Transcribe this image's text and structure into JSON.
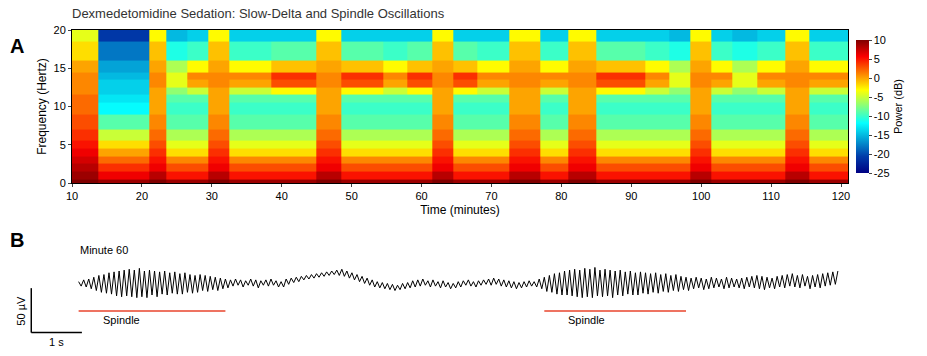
{
  "chart_data": [
    {
      "type": "heatmap",
      "panel": "A",
      "title": "Dexmedetomidine Sedation: Slow-Delta and Spindle Oscillations",
      "x_label": "Time (minutes)",
      "y_label": "Frequency (Hertz)",
      "xlim": [
        10,
        121
      ],
      "xticks": [
        10,
        20,
        30,
        40,
        50,
        60,
        70,
        80,
        90,
        100,
        110,
        120
      ],
      "ylim": [
        0,
        20
      ],
      "yticks": [
        0,
        5,
        10,
        15,
        20
      ],
      "x": [
        10,
        12.5,
        15,
        17.5,
        20,
        22,
        25,
        28,
        31,
        34,
        37,
        40,
        43,
        47,
        50,
        53,
        56,
        60,
        63,
        66,
        70,
        75,
        79,
        83,
        87,
        90,
        94,
        97,
        100,
        103,
        106,
        110,
        114,
        117,
        120
      ],
      "y": [
        0,
        1,
        2,
        3,
        4,
        5,
        6,
        8,
        10,
        11,
        12,
        13,
        14,
        15,
        17,
        20
      ],
      "z": [
        [
          10,
          10,
          9,
          9,
          9,
          10,
          9,
          9,
          10,
          9,
          9,
          9,
          9,
          10,
          9,
          9,
          9,
          9,
          10,
          9,
          9,
          10,
          9,
          10,
          9,
          9,
          9,
          9,
          10,
          9,
          9,
          9,
          10,
          9,
          9
        ],
        [
          9,
          9,
          6,
          6,
          6,
          8,
          5,
          5,
          8,
          5,
          5,
          5,
          5,
          8,
          5,
          5,
          5,
          5,
          8,
          5,
          5,
          8,
          5,
          8,
          5,
          5,
          5,
          5,
          8,
          5,
          5,
          5,
          8,
          5,
          5
        ],
        [
          8,
          8,
          4,
          4,
          4,
          6,
          3,
          3,
          6,
          3,
          3,
          3,
          3,
          6,
          3,
          3,
          3,
          3,
          6,
          3,
          3,
          6,
          3,
          6,
          3,
          3,
          3,
          3,
          6,
          3,
          3,
          3,
          6,
          3,
          3
        ],
        [
          7,
          7,
          2,
          2,
          2,
          5,
          1,
          1,
          5,
          1,
          1,
          1,
          1,
          5,
          1,
          1,
          1,
          1,
          5,
          1,
          1,
          5,
          1,
          5,
          1,
          1,
          1,
          1,
          5,
          1,
          1,
          1,
          5,
          1,
          1
        ],
        [
          6,
          6,
          0,
          0,
          0,
          4,
          -2,
          -2,
          4,
          -2,
          -2,
          -2,
          -2,
          4,
          -2,
          -2,
          -2,
          -2,
          4,
          -2,
          -2,
          4,
          -2,
          4,
          -2,
          -2,
          -2,
          -2,
          4,
          -2,
          -2,
          -2,
          4,
          -2,
          -2
        ],
        [
          5,
          5,
          -2,
          -2,
          -2,
          3,
          -4,
          -4,
          3,
          -4,
          -4,
          -4,
          -4,
          3,
          -4,
          -4,
          -4,
          -4,
          3,
          -4,
          -4,
          3,
          -4,
          3,
          -4,
          -4,
          -4,
          -4,
          3,
          -4,
          -4,
          -4,
          3,
          -4,
          -4
        ],
        [
          4,
          4,
          -5,
          -5,
          -5,
          2,
          -6,
          -6,
          2,
          -6,
          -6,
          -6,
          -6,
          2,
          -6,
          -6,
          -6,
          -6,
          2,
          -6,
          -6,
          2,
          -6,
          2,
          -6,
          -6,
          -6,
          -6,
          2,
          -6,
          -6,
          -6,
          2,
          -6,
          -6
        ],
        [
          3,
          3,
          -9,
          -9,
          -9,
          1,
          -9,
          -9,
          1,
          -9,
          -9,
          -9,
          -9,
          1,
          -9,
          -9,
          -9,
          -9,
          1,
          -9,
          -9,
          1,
          -9,
          1,
          -9,
          -9,
          -9,
          -9,
          1,
          -9,
          -9,
          -9,
          1,
          -9,
          -9
        ],
        [
          2,
          2,
          -12,
          -12,
          -12,
          0,
          -10,
          -10,
          0,
          -10,
          -10,
          -10,
          -10,
          0,
          -10,
          -10,
          -10,
          -10,
          0,
          -10,
          -10,
          0,
          -10,
          0,
          -10,
          -10,
          -10,
          -10,
          0,
          -10,
          -10,
          -10,
          0,
          -10,
          -10
        ],
        [
          2,
          2,
          -13,
          -13,
          -13,
          0,
          -9,
          -9,
          0,
          -9,
          -9,
          -9,
          -9,
          0,
          -9,
          -9,
          -9,
          -9,
          0,
          -9,
          -9,
          0,
          -9,
          0,
          -9,
          -9,
          -9,
          -9,
          0,
          -9,
          -9,
          -9,
          0,
          -9,
          -9
        ],
        [
          1,
          1,
          -14,
          -14,
          -14,
          0,
          -7,
          -5,
          0,
          -5,
          -5,
          -3,
          -3,
          0,
          -3,
          -3,
          -5,
          -3,
          0,
          -3,
          -5,
          0,
          -5,
          0,
          -3,
          -3,
          -5,
          -7,
          0,
          -5,
          -7,
          -5,
          0,
          -5,
          -5
        ],
        [
          1,
          1,
          -14,
          -14,
          -14,
          1,
          -4,
          0,
          1,
          0,
          0,
          3,
          3,
          1,
          3,
          3,
          0,
          3,
          1,
          3,
          0,
          1,
          0,
          1,
          3,
          3,
          0,
          -4,
          1,
          0,
          -4,
          0,
          1,
          0,
          0
        ],
        [
          1,
          1,
          -15,
          -15,
          -15,
          1,
          -4,
          1,
          1,
          1,
          1,
          4,
          4,
          1,
          4,
          4,
          1,
          4,
          1,
          4,
          1,
          1,
          1,
          1,
          4,
          4,
          1,
          -4,
          1,
          1,
          -4,
          1,
          1,
          1,
          1
        ],
        [
          0,
          0,
          -16,
          -16,
          -16,
          0,
          -6,
          -3,
          0,
          -3,
          -3,
          -1,
          -1,
          0,
          -1,
          -1,
          -3,
          -1,
          0,
          -1,
          -3,
          0,
          -3,
          0,
          -1,
          -1,
          -3,
          -6,
          0,
          -3,
          -6,
          -3,
          0,
          -3,
          -3
        ],
        [
          -2,
          -2,
          -18,
          -18,
          -18,
          -1,
          -11,
          -10,
          -1,
          -10,
          -10,
          -9,
          -9,
          -1,
          -9,
          -9,
          -10,
          -9,
          -1,
          -9,
          -10,
          -1,
          -10,
          -1,
          -9,
          -9,
          -10,
          -11,
          -1,
          -10,
          -11,
          -10,
          -1,
          -10,
          -10
        ],
        [
          -4,
          -4,
          -21,
          -21,
          -21,
          -3,
          -15,
          -14,
          -3,
          -14,
          -14,
          -14,
          -14,
          -3,
          -14,
          -14,
          -14,
          -14,
          -3,
          -14,
          -14,
          -3,
          -14,
          -3,
          -14,
          -14,
          -14,
          -15,
          -3,
          -14,
          -15,
          -14,
          -3,
          -14,
          -14
        ]
      ],
      "colorbar": {
        "title": "Power (dB)",
        "range": [
          -25,
          10
        ],
        "ticks": [
          -25,
          -20,
          -15,
          -10,
          -5,
          0,
          5,
          10
        ]
      }
    },
    {
      "type": "line",
      "panel": "B",
      "subtitle": "Minute 60",
      "color": "#000000",
      "tick_labels": false,
      "xlim": [
        -1,
        15.2
      ],
      "ylim": [
        -58,
        32
      ],
      "x": [
        0,
        0.05,
        0.1,
        0.15,
        0.2,
        0.25,
        0.3,
        0.35,
        0.4,
        0.45,
        0.5,
        0.55,
        0.6,
        0.65,
        0.7,
        0.75,
        0.8,
        0.85,
        0.9,
        0.95,
        1,
        1.05,
        1.1,
        1.15,
        1.2,
        1.25,
        1.3,
        1.35,
        1.4,
        1.45,
        1.5,
        1.55,
        1.6,
        1.65,
        1.7,
        1.75,
        1.8,
        1.85,
        1.9,
        1.95,
        2,
        2.05,
        2.1,
        2.15,
        2.2,
        2.25,
        2.3,
        2.35,
        2.4,
        2.45,
        2.5,
        2.55,
        2.6,
        2.65,
        2.7,
        2.75,
        2.8,
        2.85,
        2.9,
        2.95,
        3,
        3.05,
        3.1,
        3.15,
        3.2,
        3.25,
        3.3,
        3.35,
        3.4,
        3.45,
        3.5,
        3.55,
        3.6,
        3.65,
        3.7,
        3.75,
        3.8,
        3.85,
        3.9,
        3.95,
        4,
        4.05,
        4.1,
        4.15,
        4.2,
        4.25,
        4.3,
        4.35,
        4.4,
        4.45,
        4.5,
        4.55,
        4.6,
        4.65,
        4.7,
        4.75,
        4.8,
        4.85,
        4.9,
        4.95,
        5,
        5.05,
        5.1,
        5.15,
        5.2,
        5.25,
        5.3,
        5.35,
        5.4,
        5.45,
        5.5,
        5.55,
        5.6,
        5.65,
        5.7,
        5.75,
        5.8,
        5.85,
        5.9,
        5.95,
        6,
        6.05,
        6.1,
        6.15,
        6.2,
        6.25,
        6.3,
        6.35,
        6.4,
        6.45,
        6.5,
        6.55,
        6.6,
        6.65,
        6.7,
        6.75,
        6.8,
        6.85,
        6.9,
        6.95,
        7,
        7.05,
        7.1,
        7.15,
        7.2,
        7.25,
        7.3,
        7.35,
        7.4,
        7.45,
        7.5,
        7.55,
        7.6,
        7.65,
        7.7,
        7.75,
        7.8,
        7.85,
        7.9,
        7.95,
        8,
        8.05,
        8.1,
        8.15,
        8.2,
        8.25,
        8.3,
        8.35,
        8.4,
        8.45,
        8.5,
        8.55,
        8.6,
        8.65,
        8.7,
        8.75,
        8.8,
        8.85,
        8.9,
        8.95,
        9,
        9.05,
        9.1,
        9.15,
        9.2,
        9.25,
        9.3,
        9.35,
        9.4,
        9.45,
        9.5,
        9.55,
        9.6,
        9.65,
        9.7,
        9.75,
        9.8,
        9.85,
        9.9,
        9.95,
        10,
        10.05,
        10.1,
        10.15,
        10.2,
        10.25,
        10.3,
        10.35,
        10.4,
        10.45,
        10.5,
        10.55,
        10.6,
        10.65,
        10.7,
        10.75,
        10.8,
        10.85,
        10.9,
        10.95,
        11,
        11.05,
        11.1,
        11.15,
        11.2,
        11.25,
        11.3,
        11.35,
        11.4,
        11.45,
        11.5,
        11.55,
        11.6,
        11.65,
        11.7,
        11.75,
        11.8,
        11.85,
        11.9,
        11.95,
        12,
        12.05,
        12.1,
        12.15,
        12.2,
        12.25,
        12.3,
        12.35,
        12.4,
        12.45,
        12.5,
        12.55,
        12.6,
        12.65,
        12.7,
        12.75,
        12.8,
        12.85,
        12.9,
        12.95,
        13,
        13.05,
        13.1,
        13.15,
        13.2,
        13.25,
        13.3,
        13.35,
        13.4,
        13.45,
        13.5,
        13.55,
        13.6,
        13.65,
        13.7,
        13.75,
        13.8,
        13.85,
        13.9,
        13.95,
        14,
        14.05,
        14.1,
        14.15,
        14.2,
        14.25,
        14.3,
        14.35,
        14.4,
        14.45,
        14.5,
        14.55,
        14.6,
        14.65,
        14.7,
        14.75,
        14.8,
        14.85,
        14.9,
        14.95,
        15
      ],
      "values": [
        2,
        -3,
        4,
        -4,
        5,
        -6,
        7,
        -8,
        9,
        -10,
        10,
        -11,
        12,
        -12,
        13,
        -14,
        14,
        -15,
        15,
        -14,
        16,
        -15,
        15,
        -16,
        17,
        -15,
        14,
        -16,
        15,
        -13,
        14,
        -15,
        13,
        -12,
        14,
        -13,
        12,
        -11,
        13,
        -12,
        11,
        -12,
        12,
        -10,
        10,
        -11,
        9,
        -10,
        10,
        -8,
        9,
        -9,
        8,
        -7,
        7,
        -8,
        6,
        -6,
        5,
        -5,
        4,
        -3,
        5,
        -2,
        4,
        -4,
        3,
        -2,
        5,
        -3,
        4,
        -5,
        3,
        -2,
        4,
        -3,
        5,
        -2,
        3,
        -4,
        2,
        -4,
        5,
        -1,
        6,
        1,
        7,
        2,
        8,
        4,
        9,
        5,
        10,
        6,
        11,
        7,
        12,
        8,
        13,
        9,
        14,
        10,
        15,
        9,
        16,
        8,
        14,
        6,
        12,
        4,
        10,
        2,
        8,
        0,
        6,
        -2,
        4,
        -4,
        2,
        -5,
        1,
        -6,
        0,
        -7,
        -1,
        -8,
        -2,
        -7,
        0,
        -6,
        1,
        -5,
        3,
        -4,
        4,
        -3,
        5,
        -2,
        3,
        -4,
        4,
        -3,
        2,
        -5,
        3,
        -4,
        1,
        -6,
        0,
        -5,
        2,
        -4,
        3,
        -2,
        4,
        -3,
        2,
        -4,
        3,
        -2,
        4,
        -1,
        5,
        -2,
        6,
        -1,
        5,
        -3,
        4,
        -4,
        3,
        -5,
        2,
        -6,
        1,
        -5,
        2,
        -4,
        3,
        -3,
        2,
        -4,
        5,
        -6,
        7,
        -9,
        9,
        -10,
        11,
        -12,
        12,
        -13,
        14,
        -13,
        15,
        -14,
        16,
        -15,
        15,
        -16,
        17,
        -15,
        16,
        -16,
        18,
        -14,
        15,
        -15,
        16,
        -14,
        15,
        -16,
        14,
        -13,
        15,
        -14,
        13,
        -12,
        14,
        -13,
        12,
        -13,
        13,
        -11,
        12,
        -12,
        11,
        -10,
        12,
        -11,
        10,
        -9,
        11,
        -10,
        9,
        -8,
        10,
        -9,
        8,
        -7,
        7,
        -8,
        6,
        -6,
        7,
        -5,
        6,
        -7,
        5,
        -6,
        7,
        -5,
        6,
        -4,
        5,
        -6,
        7,
        -5,
        6,
        -4,
        5,
        -5,
        6,
        -6,
        7,
        -4,
        8,
        -5,
        9,
        -6,
        8,
        -7,
        7,
        -5,
        6,
        -6,
        8,
        -4,
        9,
        -5,
        10,
        -3,
        11,
        -4,
        9,
        -5,
        10,
        -3,
        8,
        -6,
        9,
        -4,
        10,
        -5,
        11,
        -3,
        12,
        -2,
        13,
        -1,
        14
      ],
      "scale_bars": {
        "time": {
          "value": 1,
          "label": "1 s"
        },
        "amplitude": {
          "value": 50,
          "label": "50 µV"
        }
      },
      "annotations": [
        {
          "text": "Spindle",
          "start": 0,
          "end": 2.9,
          "color": "#e8452c"
        },
        {
          "text": "Spindle",
          "start": 9.2,
          "end": 12.0,
          "color": "#e8452c"
        }
      ]
    }
  ]
}
